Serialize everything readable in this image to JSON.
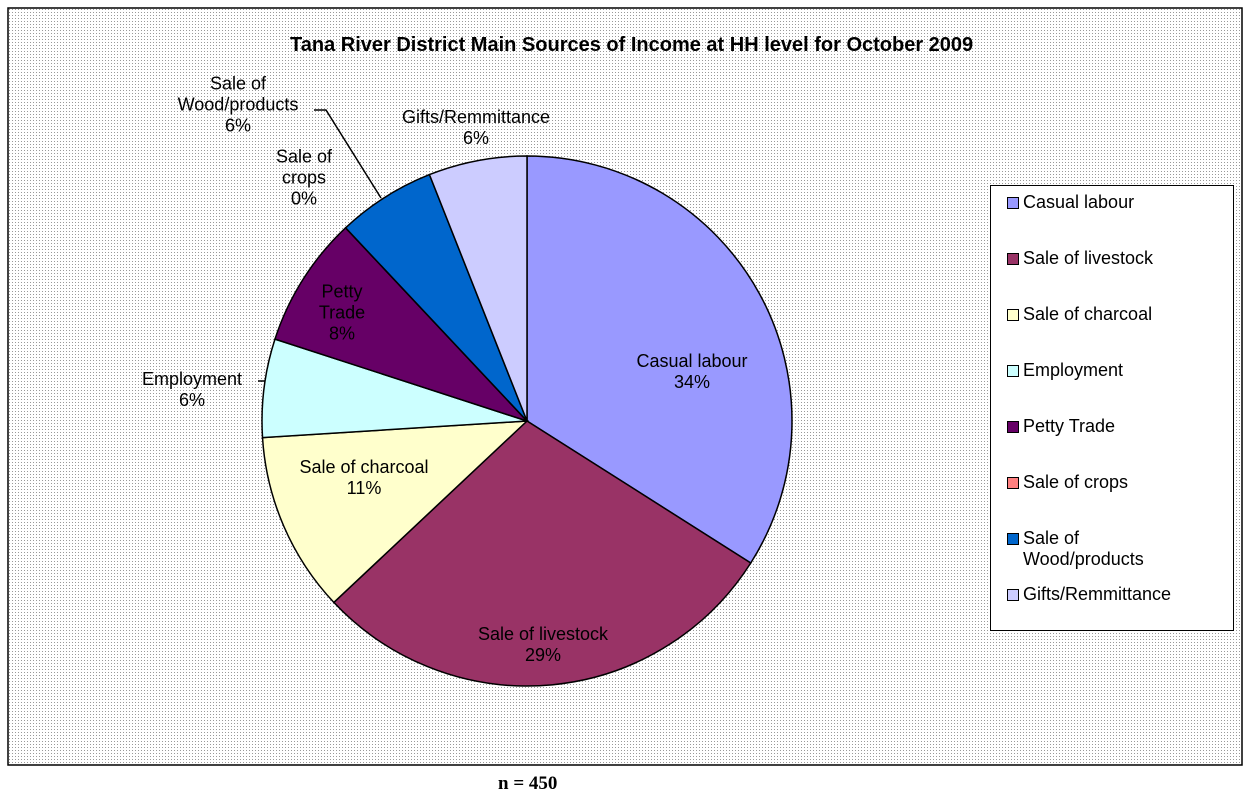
{
  "chart_data": {
    "type": "pie",
    "title": "Tana River District Main Sources of Income at HH level for October 2009",
    "categories": [
      "Casual labour",
      "Sale of livestock",
      "Sale of charcoal",
      "Employment",
      "Petty Trade",
      "Sale of crops",
      "Sale of Wood/products",
      "Gifts/Remmittance"
    ],
    "values": [
      34,
      29,
      11,
      6,
      8,
      0,
      6,
      6
    ],
    "value_labels": [
      "34%",
      "29%",
      "11%",
      "6%",
      "8%",
      "0%",
      "6%",
      "6%"
    ],
    "colors": [
      "#9999ff",
      "#993366",
      "#ffffcc",
      "#ccffff",
      "#660066",
      "#ff8080",
      "#0066cc",
      "#ccccff"
    ],
    "legend": "right",
    "note": "n = 450"
  }
}
